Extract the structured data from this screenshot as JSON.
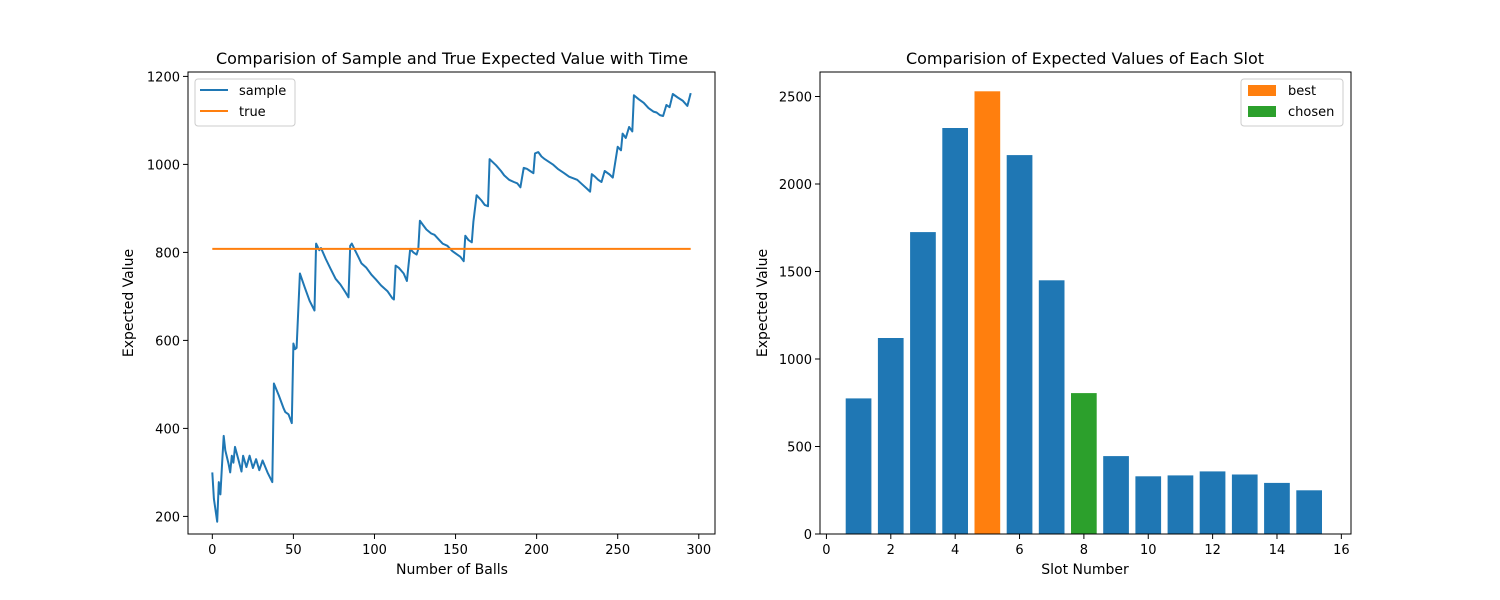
{
  "colors": {
    "series_blue": "#1f77b4",
    "series_orange": "#ff7f0e",
    "series_green": "#2ca02c",
    "axis": "#000000",
    "legend_border": "#cccccc"
  },
  "chart_data": [
    {
      "type": "line",
      "title": "Comparision of Sample and True Expected Value with Time",
      "xlabel": "Number of Balls",
      "ylabel": "Expected Value",
      "xlim": [
        -15,
        310
      ],
      "ylim": [
        160,
        1210
      ],
      "xticks": [
        0,
        50,
        100,
        150,
        200,
        250,
        300
      ],
      "yticks": [
        200,
        400,
        600,
        800,
        1000,
        1200
      ],
      "grid": false,
      "legend_position": "top-left",
      "series": [
        {
          "name": "sample",
          "color": "#1f77b4",
          "points": [
            [
              0,
              300
            ],
            [
              1,
              240
            ],
            [
              3,
              188
            ],
            [
              4,
              278
            ],
            [
              5,
              250
            ],
            [
              6,
              320
            ],
            [
              7,
              383
            ],
            [
              8,
              350
            ],
            [
              10,
              320
            ],
            [
              11,
              300
            ],
            [
              12,
              338
            ],
            [
              13,
              322
            ],
            [
              14,
              358
            ],
            [
              16,
              330
            ],
            [
              18,
              302
            ],
            [
              19,
              338
            ],
            [
              21,
              312
            ],
            [
              23,
              338
            ],
            [
              25,
              310
            ],
            [
              27,
              330
            ],
            [
              29,
              305
            ],
            [
              31,
              327
            ],
            [
              34,
              300
            ],
            [
              37,
              278
            ],
            [
              38,
              502
            ],
            [
              41,
              475
            ],
            [
              44,
              445
            ],
            [
              45,
              437
            ],
            [
              47,
              432
            ],
            [
              49,
              412
            ],
            [
              50,
              593
            ],
            [
              51,
              580
            ],
            [
              52,
              583
            ],
            [
              54,
              752
            ],
            [
              57,
              720
            ],
            [
              60,
              690
            ],
            [
              63,
              668
            ],
            [
              64,
              820
            ],
            [
              66,
              805
            ],
            [
              67,
              810
            ],
            [
              70,
              785
            ],
            [
              73,
              762
            ],
            [
              76,
              740
            ],
            [
              79,
              727
            ],
            [
              82,
              710
            ],
            [
              84,
              698
            ],
            [
              85,
              815
            ],
            [
              86,
              820
            ],
            [
              88,
              805
            ],
            [
              90,
              790
            ],
            [
              92,
              775
            ],
            [
              95,
              765
            ],
            [
              98,
              750
            ],
            [
              101,
              738
            ],
            [
              104,
              725
            ],
            [
              108,
              712
            ],
            [
              111,
              696
            ],
            [
              112,
              693
            ],
            [
              113,
              770
            ],
            [
              115,
              765
            ],
            [
              118,
              752
            ],
            [
              120,
              735
            ],
            [
              122,
              808
            ],
            [
              124,
              800
            ],
            [
              126,
              795
            ],
            [
              127,
              808
            ],
            [
              128,
              872
            ],
            [
              130,
              862
            ],
            [
              132,
              852
            ],
            [
              135,
              843
            ],
            [
              137,
              840
            ],
            [
              140,
              828
            ],
            [
              142,
              820
            ],
            [
              145,
              815
            ],
            [
              148,
              803
            ],
            [
              151,
              795
            ],
            [
              153,
              790
            ],
            [
              155,
              780
            ],
            [
              156,
              838
            ],
            [
              158,
              828
            ],
            [
              160,
              823
            ],
            [
              161,
              870
            ],
            [
              163,
              930
            ],
            [
              166,
              918
            ],
            [
              168,
              908
            ],
            [
              170,
              905
            ],
            [
              171,
              1012
            ],
            [
              173,
              1005
            ],
            [
              175,
              998
            ],
            [
              178,
              985
            ],
            [
              180,
              975
            ],
            [
              183,
              965
            ],
            [
              186,
              960
            ],
            [
              188,
              957
            ],
            [
              190,
              948
            ],
            [
              192,
              992
            ],
            [
              194,
              990
            ],
            [
              196,
              985
            ],
            [
              198,
              980
            ],
            [
              199,
              1025
            ],
            [
              201,
              1028
            ],
            [
              203,
              1018
            ],
            [
              205,
              1012
            ],
            [
              210,
              1000
            ],
            [
              213,
              990
            ],
            [
              217,
              980
            ],
            [
              220,
              972
            ],
            [
              225,
              965
            ],
            [
              228,
              955
            ],
            [
              231,
              945
            ],
            [
              233,
              938
            ],
            [
              234,
              978
            ],
            [
              236,
              972
            ],
            [
              238,
              965
            ],
            [
              240,
              960
            ],
            [
              242,
              985
            ],
            [
              245,
              977
            ],
            [
              247,
              970
            ],
            [
              250,
              1040
            ],
            [
              252,
              1032
            ],
            [
              253,
              1070
            ],
            [
              255,
              1060
            ],
            [
              257,
              1085
            ],
            [
              259,
              1075
            ],
            [
              260,
              1157
            ],
            [
              263,
              1148
            ],
            [
              266,
              1140
            ],
            [
              269,
              1128
            ],
            [
              272,
              1120
            ],
            [
              274,
              1118
            ],
            [
              276,
              1112
            ],
            [
              278,
              1110
            ],
            [
              280,
              1135
            ],
            [
              282,
              1130
            ],
            [
              284,
              1160
            ],
            [
              287,
              1152
            ],
            [
              290,
              1145
            ],
            [
              293,
              1133
            ],
            [
              295,
              1162
            ]
          ]
        },
        {
          "name": "true",
          "color": "#ff7f0e",
          "points": [
            [
              0,
              808
            ],
            [
              295,
              808
            ]
          ]
        }
      ]
    },
    {
      "type": "bar",
      "title": "Comparision of Expected Values of Each Slot",
      "xlabel": "Slot Number",
      "ylabel": "Expected Value",
      "xlim": [
        -0.2,
        16.3
      ],
      "ylim": [
        0,
        2640
      ],
      "xticks": [
        0,
        2,
        4,
        6,
        8,
        10,
        12,
        14,
        16
      ],
      "yticks": [
        0,
        500,
        1000,
        1500,
        2000,
        2500
      ],
      "grid": false,
      "legend_position": "top-right",
      "legend": [
        {
          "name": "best",
          "color": "#ff7f0e"
        },
        {
          "name": "chosen",
          "color": "#2ca02c"
        }
      ],
      "categories": [
        1,
        2,
        3,
        4,
        5,
        6,
        7,
        8,
        9,
        10,
        11,
        12,
        13,
        14,
        15
      ],
      "values": [
        775,
        1120,
        1725,
        2320,
        2530,
        2165,
        1450,
        805,
        445,
        330,
        335,
        358,
        340,
        292,
        250
      ],
      "bar_colors": [
        "#1f77b4",
        "#1f77b4",
        "#1f77b4",
        "#1f77b4",
        "#ff7f0e",
        "#1f77b4",
        "#1f77b4",
        "#2ca02c",
        "#1f77b4",
        "#1f77b4",
        "#1f77b4",
        "#1f77b4",
        "#1f77b4",
        "#1f77b4",
        "#1f77b4"
      ]
    }
  ]
}
